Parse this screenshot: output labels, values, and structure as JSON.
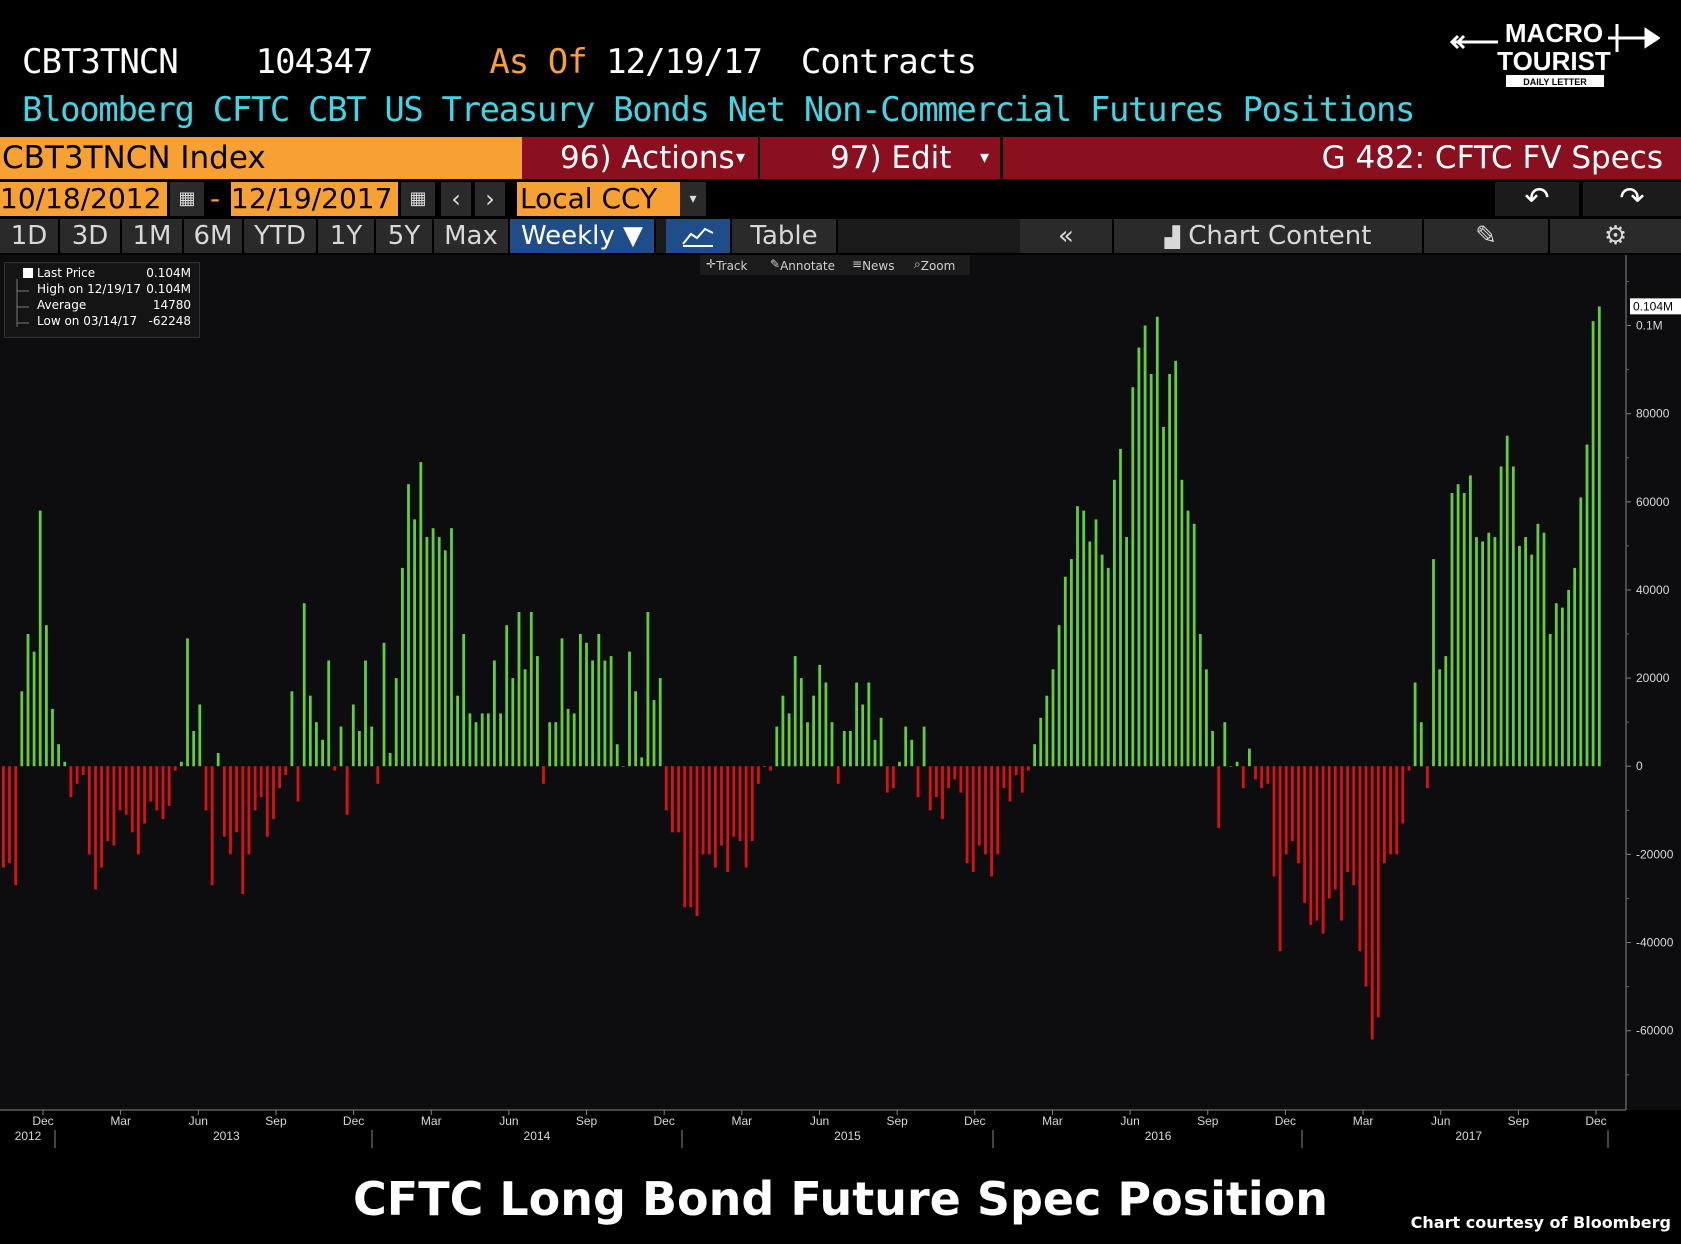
{
  "header": {
    "ticker": "CBT3TNCN",
    "value": "104347",
    "as_of_label": "As Of",
    "as_of_date": "12/19/17",
    "units": "Contracts",
    "description": "Bloomberg CFTC CBT US Treasury Bonds Net Non-Commercial Futures Positions"
  },
  "toolbar": {
    "security": "CBT3TNCN Index",
    "actions_label": "96) Actions",
    "edit_label": "97) Edit",
    "function_label": "G 482: CFTC FV Specs",
    "start_date": "10/18/2012",
    "date_sep": "-",
    "end_date": "12/19/2017",
    "currency": "Local CCY"
  },
  "periods": [
    "1D",
    "3D",
    "1M",
    "6M",
    "YTD",
    "1Y",
    "5Y",
    "Max"
  ],
  "frequency": "Weekly ▼",
  "table_label": "Table",
  "chart_content_label": "Chart Content",
  "tools": {
    "track": "Track",
    "annotate": "Annotate",
    "news": "News",
    "zoom": "Zoom"
  },
  "legend": {
    "last_price_label": "Last Price",
    "last_price_value": "0.104M",
    "high_label": "High on 12/19/17",
    "high_value": "0.104M",
    "average_label": "Average",
    "average_value": "14780",
    "low_label": "Low on 03/14/17",
    "low_value": "-62248"
  },
  "logo": {
    "line1": "MACRO",
    "line2": "TOURIST",
    "sub": "DAILY LETTER"
  },
  "footer": {
    "title": "CFTC Long Bond Future Spec Position",
    "credit": "Chart courtesy of Bloomberg"
  },
  "colors": {
    "positive": "#5fcf3a",
    "negative": "#dd1111",
    "background": "#0d0d10",
    "header_orange": "#f7a033",
    "header_cyan": "#3fd6e6",
    "toolbar_red": "#8a1020"
  },
  "chart_data": {
    "type": "bar",
    "frequency": "weekly",
    "x_start": "2012-10-23",
    "x_end": "2017-12-19",
    "ylim": [
      -78000,
      116000
    ],
    "y_ticks": [
      -60000,
      -40000,
      -20000,
      0,
      20000,
      40000,
      60000,
      80000,
      "0.1M"
    ],
    "last_value_label": "0.104M",
    "x_tick_labels": [
      {
        "label": "Dec",
        "year": "2012"
      },
      {
        "label": "Mar"
      },
      {
        "label": "Jun",
        "year": "2013"
      },
      {
        "label": "Sep"
      },
      {
        "label": "Dec"
      },
      {
        "label": "Mar"
      },
      {
        "label": "Jun",
        "year": "2014"
      },
      {
        "label": "Sep"
      },
      {
        "label": "Dec"
      },
      {
        "label": "Mar"
      },
      {
        "label": "Jun",
        "year": "2015"
      },
      {
        "label": "Sep"
      },
      {
        "label": "Dec"
      },
      {
        "label": "Mar"
      },
      {
        "label": "Jun",
        "year": "2016"
      },
      {
        "label": "Sep"
      },
      {
        "label": "Dec"
      },
      {
        "label": "Mar"
      },
      {
        "label": "Jun",
        "year": "2017"
      },
      {
        "label": "Sep"
      },
      {
        "label": "Dec"
      }
    ],
    "values": [
      -23000,
      -22000,
      -27000,
      17000,
      30000,
      26000,
      58000,
      32000,
      13000,
      5000,
      1000,
      -7000,
      -4000,
      -2000,
      -20000,
      -28000,
      -23000,
      -17000,
      -18000,
      -10000,
      -11000,
      -15000,
      -20000,
      -13000,
      -8000,
      -10000,
      -12000,
      -9000,
      -1000,
      1000,
      29000,
      8000,
      14000,
      -10000,
      -27000,
      3000,
      -16000,
      -20000,
      -15000,
      -29000,
      -20000,
      -10000,
      -7000,
      -16000,
      -12000,
      -5000,
      -2000,
      17000,
      -8000,
      37000,
      16000,
      10000,
      6000,
      24000,
      -1000,
      9000,
      -11000,
      14000,
      8000,
      24000,
      9000,
      -4000,
      28000,
      3000,
      20000,
      45000,
      64000,
      56000,
      69000,
      52000,
      54000,
      52000,
      49000,
      54000,
      16000,
      30000,
      12000,
      10000,
      12000,
      12000,
      24000,
      12000,
      32000,
      20000,
      35000,
      22000,
      35000,
      25000,
      -4000,
      10000,
      10000,
      29000,
      13000,
      12000,
      30000,
      28000,
      24000,
      30000,
      24000,
      25000,
      5000,
      0,
      26000,
      17000,
      2000,
      35000,
      15000,
      20000,
      -10000,
      -15000,
      -15000,
      -32000,
      -32000,
      -34000,
      -20000,
      -20000,
      -23000,
      -18000,
      -24000,
      -16000,
      -17000,
      -23000,
      -17000,
      -4000,
      0,
      -1000,
      9000,
      16000,
      12000,
      25000,
      20000,
      10000,
      16000,
      23000,
      19000,
      10000,
      -4000,
      8000,
      8000,
      19000,
      14000,
      19000,
      6000,
      11000,
      -6000,
      -5000,
      1000,
      9000,
      6000,
      -7000,
      9000,
      -10000,
      -7000,
      -12000,
      -5000,
      -3000,
      -6000,
      -22000,
      -24000,
      -18000,
      -20000,
      -25000,
      -20000,
      -5000,
      -8000,
      -2000,
      -6000,
      -1000,
      5000,
      11000,
      16000,
      22000,
      32000,
      43000,
      47000,
      59000,
      58000,
      51000,
      56000,
      48000,
      45000,
      65000,
      72000,
      52000,
      86000,
      95000,
      100000,
      89000,
      102000,
      77000,
      89000,
      92000,
      65000,
      58000,
      55000,
      30000,
      22000,
      8000,
      -14000,
      10000,
      0,
      1000,
      -5000,
      4000,
      -3000,
      -5000,
      -4000,
      -25000,
      -42000,
      -20000,
      -17000,
      -22000,
      -31000,
      -36000,
      -35000,
      -38000,
      -30000,
      -28000,
      -35000,
      -24000,
      -27000,
      -42000,
      -50000,
      -62000,
      -57000,
      -22000,
      -20000,
      -20000,
      -13000,
      -1000,
      19000,
      10000,
      -5000,
      47000,
      22000,
      25000,
      62000,
      64000,
      62000,
      66000,
      52000,
      51000,
      53000,
      52000,
      68000,
      75000,
      68000,
      50000,
      52000,
      48000,
      55000,
      53000,
      30000,
      37000,
      36000,
      40000,
      45000,
      61000,
      73000,
      101000,
      104347
    ],
    "title": "",
    "xlabel": "",
    "ylabel": ""
  }
}
